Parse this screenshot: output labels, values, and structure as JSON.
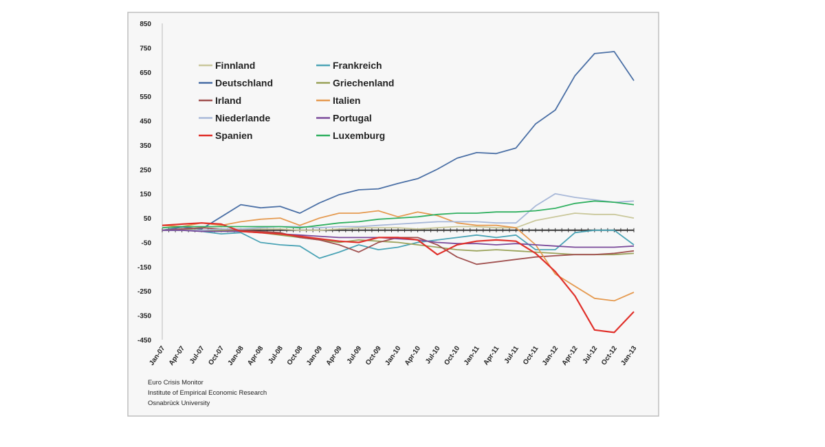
{
  "chart_data": {
    "type": "line",
    "title": "",
    "xlabel": "",
    "ylabel": "",
    "ylim": [
      -450,
      850
    ],
    "yticks": [
      850,
      750,
      650,
      550,
      450,
      350,
      250,
      150,
      50,
      -50,
      -150,
      -250,
      -350,
      -450
    ],
    "x": [
      "Jan-07",
      "Apr-07",
      "Jul-07",
      "Oct-07",
      "Jan-08",
      "Apr-08",
      "Jul-08",
      "Oct-08",
      "Jan-09",
      "Apr-09",
      "Jul-09",
      "Oct-09",
      "Jan-10",
      "Apr-10",
      "Jul-10",
      "Oct-10",
      "Jan-11",
      "Apr-11",
      "Jul-11",
      "Oct-11",
      "Jan-12",
      "Apr-12",
      "Jul-12",
      "Oct-12",
      "Jan-13"
    ],
    "grid": false,
    "legend_position": "top-left",
    "series": [
      {
        "name": "Finnland",
        "color": "#c9c79a",
        "values": [
          0,
          0,
          0,
          0,
          5,
          5,
          5,
          0,
          0,
          5,
          10,
          10,
          10,
          5,
          10,
          15,
          15,
          10,
          10,
          40,
          55,
          70,
          65,
          65,
          50
        ]
      },
      {
        "name": "Frankreich",
        "color": "#4aa3b5",
        "values": [
          0,
          0,
          -5,
          -15,
          -10,
          -50,
          -60,
          -65,
          -115,
          -90,
          -60,
          -80,
          -70,
          -50,
          -40,
          -30,
          -20,
          -30,
          -20,
          -80,
          -80,
          -10,
          0,
          0,
          -60
        ]
      },
      {
        "name": "Deutschland",
        "color": "#4a6fa5",
        "values": [
          0,
          13,
          5,
          55,
          105,
          92,
          98,
          70,
          112,
          146,
          166,
          170,
          192,
          212,
          251,
          296,
          319,
          315,
          338,
          437,
          494,
          635,
          726,
          734,
          615
        ]
      },
      {
        "name": "Griechenland",
        "color": "#9aa25a",
        "values": [
          0,
          5,
          0,
          0,
          -5,
          -10,
          -20,
          -30,
          -40,
          -50,
          -40,
          -45,
          -50,
          -60,
          -70,
          -80,
          -85,
          -80,
          -85,
          -90,
          -95,
          -100,
          -100,
          -100,
          -95
        ]
      },
      {
        "name": "Irland",
        "color": "#a0504f",
        "values": [
          0,
          5,
          10,
          5,
          0,
          -5,
          -10,
          -30,
          -40,
          -60,
          -90,
          -50,
          -30,
          -30,
          -60,
          -110,
          -140,
          -130,
          -120,
          -110,
          -105,
          -100,
          -100,
          -95,
          -85
        ]
      },
      {
        "name": "Italien",
        "color": "#e59a50",
        "values": [
          20,
          15,
          30,
          20,
          35,
          45,
          50,
          20,
          50,
          70,
          70,
          80,
          55,
          75,
          60,
          30,
          20,
          20,
          10,
          -60,
          -180,
          -230,
          -280,
          -290,
          -255
        ]
      },
      {
        "name": "Niederlande",
        "color": "#a8b8d8",
        "values": [
          0,
          0,
          0,
          5,
          5,
          10,
          15,
          15,
          10,
          15,
          15,
          20,
          25,
          30,
          35,
          35,
          35,
          30,
          30,
          100,
          150,
          135,
          125,
          115,
          120
        ]
      },
      {
        "name": "Portugal",
        "color": "#7a4a9a",
        "values": [
          0,
          0,
          -5,
          -5,
          -5,
          -10,
          -15,
          -20,
          -25,
          -30,
          -30,
          -30,
          -35,
          -40,
          -50,
          -55,
          -55,
          -60,
          -55,
          -60,
          -65,
          -70,
          -70,
          -70,
          -65
        ]
      },
      {
        "name": "Spanien",
        "color": "#e0302a",
        "values": [
          20,
          25,
          30,
          25,
          -5,
          -10,
          -15,
          -25,
          -35,
          -45,
          -50,
          -30,
          -30,
          -40,
          -100,
          -60,
          -45,
          -40,
          -45,
          -95,
          -170,
          -270,
          -410,
          -420,
          -335
        ]
      },
      {
        "name": "Luxemburg",
        "color": "#30b060",
        "values": [
          10,
          15,
          15,
          15,
          15,
          15,
          15,
          10,
          20,
          30,
          35,
          45,
          50,
          55,
          65,
          70,
          70,
          75,
          75,
          80,
          90,
          110,
          120,
          115,
          105
        ]
      }
    ]
  },
  "footer": {
    "line1": "Euro Crisis Monitor",
    "line2": "Institute of Empirical Economic Research",
    "line3": "Osnabrück University"
  }
}
